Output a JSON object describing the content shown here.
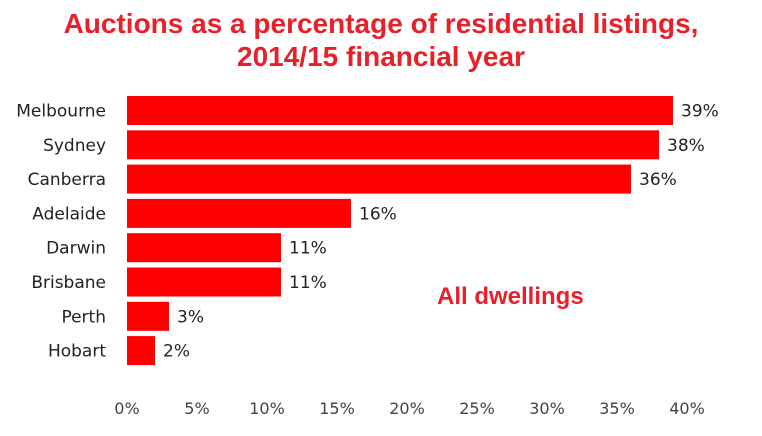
{
  "chart_data": {
    "type": "bar",
    "orientation": "horizontal",
    "title_line1": "Auctions as a percentage of residential listings,",
    "title_line2": "2014/15 financial year",
    "annotation": "All dwellings",
    "categories": [
      "Melbourne",
      "Sydney",
      "Canberra",
      "Adelaide",
      "Darwin",
      "Brisbane",
      "Perth",
      "Hobart"
    ],
    "values": [
      39,
      38,
      36,
      16,
      11,
      11,
      3,
      2
    ],
    "value_labels": [
      "39%",
      "38%",
      "36%",
      "16%",
      "11%",
      "11%",
      "3%",
      "2%"
    ],
    "xlim": [
      0,
      40
    ],
    "xticks": [
      0,
      5,
      10,
      15,
      20,
      25,
      30,
      35,
      40
    ],
    "xtick_labels": [
      "0%",
      "5%",
      "10%",
      "15%",
      "20%",
      "25%",
      "30%",
      "35%",
      "40%"
    ],
    "grid": false,
    "legend": false,
    "colors": {
      "bar": "#ff0000",
      "title": "#e8202a",
      "annotation": "#e8202a"
    }
  }
}
